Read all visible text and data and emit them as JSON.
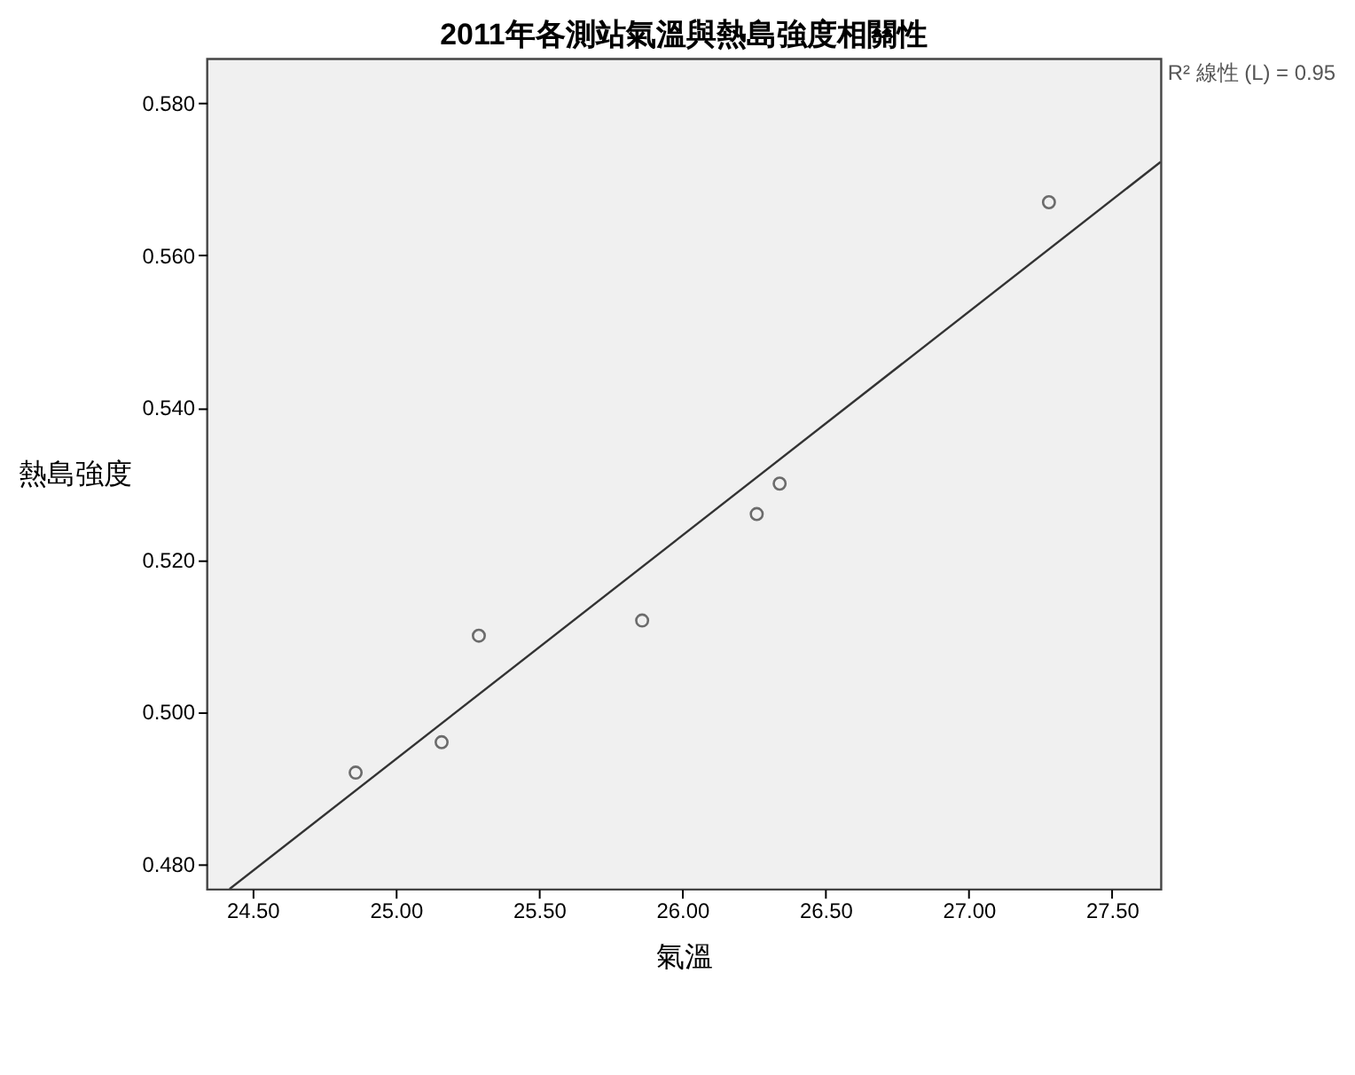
{
  "chart_data": {
    "type": "scatter",
    "title": "2011年各測站氣溫與熱島強度相關性",
    "xlabel": "氣溫",
    "ylabel": "熱島強度",
    "xlim": [
      24.34,
      27.67
    ],
    "xticks": [
      {
        "value": 24.5,
        "label": "24.50"
      },
      {
        "value": 25,
        "label": "25.00"
      },
      {
        "value": 25.5,
        "label": "25.50"
      },
      {
        "value": 26,
        "label": "26.00"
      },
      {
        "value": 26.5,
        "label": "26.50"
      },
      {
        "value": 27,
        "label": "27.00"
      },
      {
        "value": 27.5,
        "label": "27.50"
      }
    ],
    "ylim": [
      0.4767,
      0.5859
    ],
    "yticks": [
      {
        "value": 0.48,
        "label": "0.480"
      },
      {
        "value": 0.5,
        "label": "0.500"
      },
      {
        "value": 0.52,
        "label": "0.520"
      },
      {
        "value": 0.54,
        "label": "0.540"
      },
      {
        "value": 0.56,
        "label": "0.560"
      },
      {
        "value": 0.58,
        "label": "0.580"
      }
    ],
    "series": [
      {
        "color": "#333333",
        "marker": "circle",
        "x": [
          24.86,
          25.16,
          25.29,
          25.86,
          26.26,
          26.34,
          27.28
        ],
        "values": [
          0.492,
          0.496,
          0.51,
          0.512,
          0.526,
          0.53,
          0.567
        ]
      },
      {
        "type": "line",
        "color": "#333333",
        "marker": "none",
        "line_style": "solid",
        "x": [
          24.42,
          27.67
        ],
        "values": [
          0.4767,
          0.5723
        ]
      }
    ],
    "annotations": [
      "R² 線性 (L) = 0.95"
    ],
    "grid": false
  }
}
